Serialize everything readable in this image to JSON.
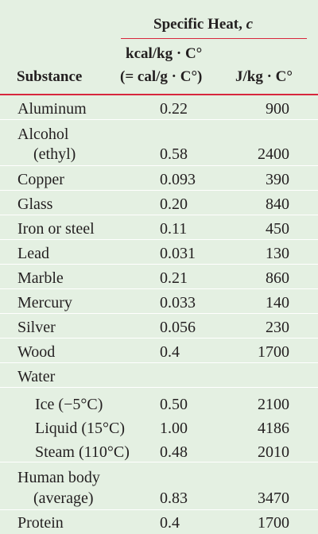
{
  "header": {
    "group_title": "Specific Heat, c",
    "col1": "Substance",
    "col2_line1": "kcal/kg · C°",
    "col2_line2": "(= cal/g · C°)",
    "col3": "J/kg · C°"
  },
  "rows": [
    {
      "name": "Aluminum",
      "kcal": "0.22",
      "j": "900"
    },
    {
      "name": "Alcohol",
      "name2": "(ethyl)",
      "kcal": "0.58",
      "j": "2400"
    },
    {
      "name": "Copper",
      "kcal": "0.093",
      "j": "390"
    },
    {
      "name": "Glass",
      "kcal": "0.20",
      "j": "840"
    },
    {
      "name": "Iron or steel",
      "kcal": "0.11",
      "j": "450"
    },
    {
      "name": "Lead",
      "kcal": "0.031",
      "j": "130"
    },
    {
      "name": "Marble",
      "kcal": "0.21",
      "j": "860"
    },
    {
      "name": "Mercury",
      "kcal": "0.033",
      "j": "140"
    },
    {
      "name": "Silver",
      "kcal": "0.056",
      "j": "230"
    },
    {
      "name": "Wood",
      "kcal": "0.4",
      "j": "1700"
    },
    {
      "name": "Water"
    },
    {
      "name": "Ice (−5°C)",
      "kcal": "0.50",
      "j": "2100"
    },
    {
      "name": "Liquid (15°C)",
      "kcal": "1.00",
      "j": "4186"
    },
    {
      "name": "Steam (110°C)",
      "kcal": "0.48",
      "j": "2010"
    },
    {
      "name": "Human body",
      "name2": "(average)",
      "kcal": "0.83",
      "j": "3470"
    },
    {
      "name": "Protein",
      "kcal": "0.4",
      "j": "1700"
    }
  ],
  "colors": {
    "background": "#e4f0e2",
    "rule": "#d7263d",
    "separator": "#ffffff",
    "text": "#231f20"
  }
}
